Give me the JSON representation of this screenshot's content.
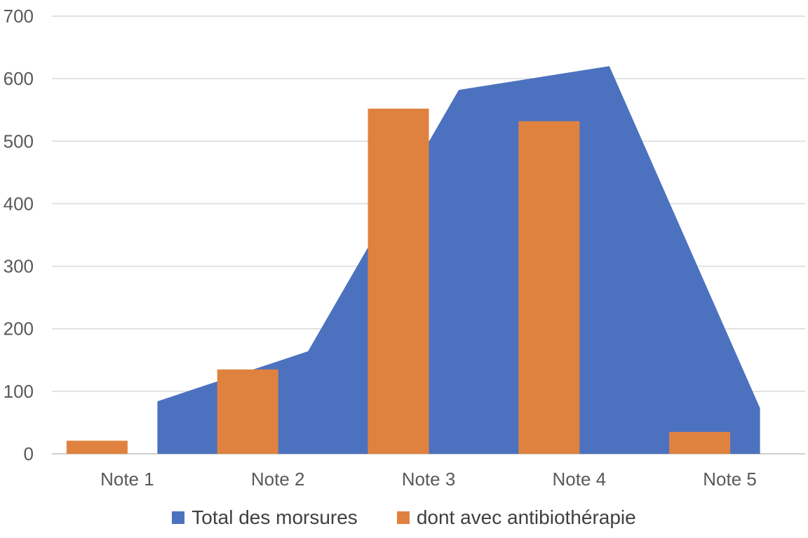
{
  "chart_data": {
    "type": "bar",
    "categories": [
      "Note 1",
      "Note 2",
      "Note 3",
      "Note 4",
      "Note 5"
    ],
    "series": [
      {
        "name": "Total des morsures",
        "type": "area",
        "color": "#4C72BF",
        "values": [
          84,
          164,
          582,
          620,
          73
        ]
      },
      {
        "name": "dont avec antibiothérapie",
        "type": "bar",
        "color": "#E0823F",
        "values": [
          21,
          135,
          552,
          532,
          35
        ]
      }
    ],
    "ylim": [
      0,
      700
    ],
    "yticks": [
      0,
      100,
      200,
      300,
      400,
      500,
      600,
      700
    ],
    "grid": true,
    "legend": "bottom"
  }
}
